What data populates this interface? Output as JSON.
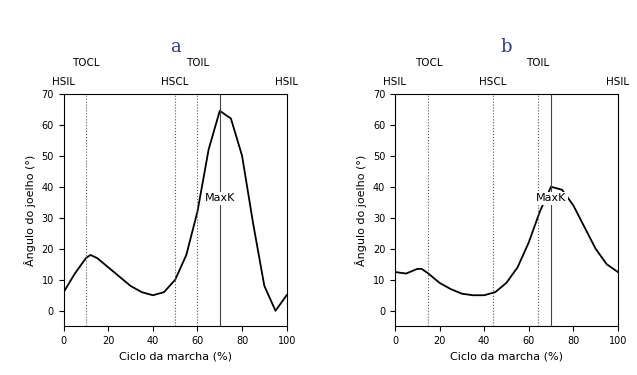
{
  "chart_data": [
    {
      "type": "line",
      "title": "a",
      "x_label": "Ciclo da marcha (%)",
      "y_label": "Ângulo do joelho (°)",
      "x": [
        0,
        5,
        10,
        12,
        15,
        20,
        25,
        30,
        35,
        40,
        45,
        50,
        55,
        60,
        65,
        70,
        75,
        80,
        85,
        90,
        95,
        100
      ],
      "values": [
        6,
        12,
        17,
        18,
        17,
        14,
        11,
        8,
        6,
        5,
        6,
        10,
        18,
        32,
        52,
        64.5,
        62,
        50,
        28,
        8,
        0,
        5
      ],
      "color": "#000000",
      "xlim": [
        0,
        100
      ],
      "ylim": [
        -5,
        70
      ],
      "xticks": [
        0,
        20,
        40,
        60,
        80,
        100
      ],
      "yticks": [
        0,
        10,
        20,
        30,
        40,
        50,
        60,
        70
      ],
      "events": [
        {
          "label": "HSIL",
          "x": 0
        },
        {
          "label": "TOCL",
          "x": 10
        },
        {
          "label": "HSCL",
          "x": 50
        },
        {
          "label": "TOIL",
          "x": 60
        },
        {
          "label": "HSIL",
          "x": 100
        }
      ],
      "annotation": {
        "text": "MaxK",
        "x": 70
      }
    },
    {
      "type": "line",
      "title": "b",
      "x_label": "Ciclo da marcha (%)",
      "y_label": "Ângulo do joelho (°)",
      "x": [
        0,
        5,
        10,
        12,
        15,
        20,
        25,
        30,
        35,
        40,
        45,
        50,
        55,
        60,
        65,
        70,
        75,
        80,
        85,
        90,
        95,
        100
      ],
      "values": [
        12.5,
        12,
        13.5,
        13.5,
        12,
        9,
        7,
        5.5,
        5,
        5,
        6,
        9,
        14,
        22,
        32,
        40,
        39,
        34,
        27,
        20,
        15,
        12.5
      ],
      "color": "#000000",
      "xlim": [
        0,
        100
      ],
      "ylim": [
        -5,
        70
      ],
      "xticks": [
        0,
        20,
        40,
        60,
        80,
        100
      ],
      "yticks": [
        0,
        10,
        20,
        30,
        40,
        50,
        60,
        70
      ],
      "events": [
        {
          "label": "HSIL",
          "x": 0
        },
        {
          "label": "TOCL",
          "x": 15
        },
        {
          "label": "HSCL",
          "x": 44
        },
        {
          "label": "TOIL",
          "x": 64
        },
        {
          "label": "HSIL",
          "x": 100
        }
      ],
      "annotation": {
        "text": "MaxK",
        "x": 70
      }
    }
  ]
}
